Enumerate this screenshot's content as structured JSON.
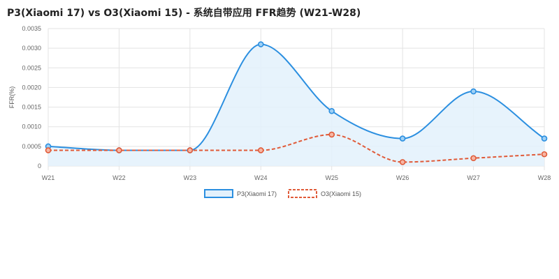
{
  "title": "P3(Xiaomi 17) vs O3(Xiaomi 15) - 系统自带应用 FFR趋势 (W21-W28)",
  "chart_data": {
    "type": "line",
    "title": "P3(Xiaomi 17) vs O3(Xiaomi 15) - 系统自带应用 FFR趋势 (W21-W28)",
    "xlabel": "",
    "ylabel": "FFR(%)",
    "categories": [
      "W21",
      "W22",
      "W23",
      "W24",
      "W25",
      "W26",
      "W27",
      "W28"
    ],
    "ylim": [
      0,
      0.0035
    ],
    "yticks": [
      "0",
      "0.0005",
      "0.0010",
      "0.0015",
      "0.0020",
      "0.0025",
      "0.0030",
      "0.0035"
    ],
    "grid": true,
    "legend_position": "bottom",
    "series": [
      {
        "name": "P3(Xiaomi 17)",
        "values": [
          0.0005,
          0.0004,
          0.0004,
          0.0031,
          0.0014,
          0.0007,
          0.0019,
          0.0007
        ],
        "color": "#2b8fe0",
        "style": "solid",
        "fill": "#e3f1fc"
      },
      {
        "name": "O3(Xiaomi 15)",
        "values": [
          0.0004,
          0.0004,
          0.0004,
          0.0004,
          0.0008,
          0.0001,
          0.0002,
          0.0003
        ],
        "color": "#e05a38",
        "style": "dashed"
      }
    ]
  }
}
